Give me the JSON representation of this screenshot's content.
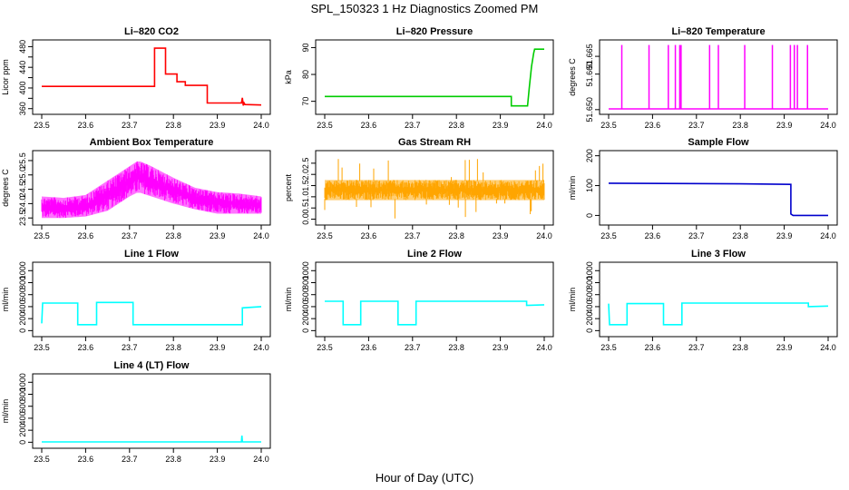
{
  "figure": {
    "title": "SPL_150323  1 Hz Diagnostics Zoomed PM",
    "xlabel": "Hour of Day (UTC)"
  },
  "chart_data": [
    {
      "type": "line",
      "title": "Li–820 CO2",
      "ylabel": "Licor ppm",
      "color": "#ff0000",
      "xlim": [
        23.5,
        24.0
      ],
      "xticks": [
        23.5,
        23.6,
        23.7,
        23.8,
        23.9,
        24.0
      ],
      "xtick_labels": [
        "23.5",
        "23.6",
        "23.7",
        "23.8",
        "23.9",
        "24.0"
      ],
      "ylim": [
        356,
        486
      ],
      "yticks": [
        360,
        380,
        400,
        420,
        440,
        460,
        480
      ],
      "ytick_labels": [
        "360",
        "",
        "400",
        "",
        "440",
        "",
        "480"
      ],
      "series": [
        {
          "x": [
            23.5,
            23.757,
            23.757,
            23.782,
            23.782,
            23.808,
            23.808,
            23.827,
            23.827,
            23.877,
            23.877,
            23.955,
            23.957,
            23.959,
            23.961,
            23.963,
            24.0
          ],
          "y": [
            403,
            403,
            477,
            477,
            427,
            427,
            412,
            412,
            405,
            405,
            371,
            371,
            381,
            366,
            371,
            368,
            367
          ]
        }
      ]
    },
    {
      "type": "line",
      "title": "Li–820 Pressure",
      "ylabel": "kPa",
      "color": "#00cc00",
      "xlim": [
        23.5,
        24.0
      ],
      "xticks": [
        23.5,
        23.6,
        23.7,
        23.8,
        23.9,
        24.0
      ],
      "xtick_labels": [
        "23.5",
        "23.6",
        "23.7",
        "23.8",
        "23.9",
        "24.0"
      ],
      "ylim": [
        66.5,
        91.5
      ],
      "yticks": [
        70,
        80,
        90
      ],
      "ytick_labels": [
        "70",
        "80",
        "90"
      ],
      "series": [
        {
          "x": [
            23.5,
            23.925,
            23.925,
            23.962,
            23.966,
            23.971,
            23.976,
            23.978,
            24.0
          ],
          "y": [
            71.8,
            71.8,
            68.3,
            68.3,
            75,
            83,
            88,
            89.4,
            89.4
          ]
        }
      ]
    },
    {
      "type": "line",
      "title": "Li–820 Temperature",
      "ylabel": "degrees C",
      "color": "#ff00ff",
      "xlim": [
        23.5,
        24.0
      ],
      "xticks": [
        23.5,
        23.6,
        23.7,
        23.8,
        23.9,
        24.0
      ],
      "xtick_labels": [
        "23.5",
        "23.6",
        "23.7",
        "23.8",
        "23.9",
        "24.0"
      ],
      "ylim": [
        51.6497,
        51.6686
      ],
      "yticks": [
        51.65,
        51.66,
        51.665
      ],
      "ytick_labels": [
        "51.650",
        "51.660",
        "51.665"
      ],
      "baseline": 51.6502,
      "spike_top": 51.6682,
      "spikes": [
        23.53,
        23.592,
        23.636,
        23.652,
        23.662,
        23.665,
        23.73,
        23.75,
        23.81,
        23.873,
        23.914,
        23.923,
        23.93,
        23.953
      ]
    },
    {
      "type": "line",
      "title": "Ambient Box Temperature",
      "ylabel": "degrees C",
      "color": "#ff00ff",
      "xlim": [
        23.5,
        24.0
      ],
      "xticks": [
        23.5,
        23.6,
        23.7,
        23.8,
        23.9,
        24.0
      ],
      "xtick_labels": [
        "23.5",
        "23.6",
        "23.7",
        "23.8",
        "23.9",
        "24.0"
      ],
      "ylim": [
        23.38,
        25.72
      ],
      "yticks": [
        23.5,
        24.0,
        24.5,
        25.0,
        25.5
      ],
      "ytick_labels": [
        "23.5",
        "24.0",
        "24.5",
        "25.0",
        "25.5"
      ],
      "band": {
        "x": [
          23.5,
          23.55,
          23.6,
          23.65,
          23.7,
          23.72,
          23.75,
          23.8,
          23.85,
          23.9,
          23.95,
          24.0
        ],
        "y_low": [
          23.5,
          23.5,
          23.55,
          23.75,
          24.25,
          24.4,
          24.25,
          24.0,
          23.8,
          23.65,
          23.65,
          23.65
        ],
        "y_high": [
          24.25,
          24.2,
          24.3,
          24.8,
          25.3,
          25.5,
          25.3,
          24.9,
          24.55,
          24.4,
          24.35,
          24.25
        ]
      }
    },
    {
      "type": "line",
      "title": "Gas Stream RH",
      "ylabel": "percent",
      "color": "#ffa500",
      "xlim": [
        23.5,
        24.0
      ],
      "xticks": [
        23.5,
        23.6,
        23.7,
        23.8,
        23.9,
        24.0
      ],
      "xtick_labels": [
        "23.5",
        "23.6",
        "23.7",
        "23.8",
        "23.9",
        "24.0"
      ],
      "ylim": [
        -0.1,
        2.9
      ],
      "yticks": [
        0.0,
        0.5,
        1.0,
        1.5,
        2.0,
        2.5
      ],
      "ytick_labels": [
        "0.0",
        "0.5",
        "1.0",
        "1.5",
        "2.0",
        "2.5"
      ],
      "band": {
        "x": [
          23.5,
          24.0
        ],
        "y_low": [
          0.85,
          0.85
        ],
        "y_high": [
          1.75,
          1.75
        ]
      }
    },
    {
      "type": "line",
      "title": "Sample Flow",
      "ylabel": "ml/min",
      "color": "#0000cc",
      "xlim": [
        23.5,
        24.0
      ],
      "xticks": [
        23.5,
        23.6,
        23.7,
        23.8,
        23.9,
        24.0
      ],
      "xtick_labels": [
        "23.5",
        "23.6",
        "23.7",
        "23.8",
        "23.9",
        "24.0"
      ],
      "ylim": [
        -20,
        205
      ],
      "yticks": [
        0,
        100,
        200
      ],
      "ytick_labels": [
        "0",
        "100",
        "200"
      ],
      "series": [
        {
          "x": [
            23.5,
            23.8,
            23.915,
            23.915,
            23.92,
            24.0
          ],
          "y": [
            108,
            106,
            104,
            5,
            0,
            0
          ]
        }
      ]
    },
    {
      "type": "line",
      "title": "Line 1 Flow",
      "ylabel": "ml/min",
      "color": "#00ffff",
      "xlim": [
        23.5,
        24.0
      ],
      "xticks": [
        23.5,
        23.6,
        23.7,
        23.8,
        23.9,
        24.0
      ],
      "xtick_labels": [
        "23.5",
        "23.6",
        "23.7",
        "23.8",
        "23.9",
        "24.0"
      ],
      "ylim": [
        -40,
        1080
      ],
      "yticks": [
        0,
        200,
        400,
        600,
        800,
        1000
      ],
      "ytick_labels": [
        "0",
        "200",
        "400",
        "600",
        "800",
        "1000"
      ],
      "series": [
        {
          "x": [
            23.5,
            23.502,
            23.582,
            23.582,
            23.625,
            23.625,
            23.708,
            23.708,
            23.957,
            23.957,
            24.0
          ],
          "y": [
            120,
            460,
            460,
            100,
            100,
            470,
            470,
            100,
            100,
            380,
            400
          ]
        }
      ]
    },
    {
      "type": "line",
      "title": "Line 2 Flow",
      "ylabel": "ml/min",
      "color": "#00ffff",
      "xlim": [
        23.5,
        24.0
      ],
      "xticks": [
        23.5,
        23.6,
        23.7,
        23.8,
        23.9,
        24.0
      ],
      "xtick_labels": [
        "23.5",
        "23.6",
        "23.7",
        "23.8",
        "23.9",
        "24.0"
      ],
      "ylim": [
        -40,
        1080
      ],
      "yticks": [
        0,
        200,
        400,
        600,
        800,
        1000
      ],
      "ytick_labels": [
        "0",
        "200",
        "400",
        "600",
        "800",
        "1000"
      ],
      "series": [
        {
          "x": [
            23.5,
            23.542,
            23.542,
            23.582,
            23.582,
            23.667,
            23.667,
            23.708,
            23.708,
            23.96,
            23.96,
            24.0
          ],
          "y": [
            490,
            490,
            100,
            100,
            490,
            490,
            100,
            100,
            490,
            490,
            420,
            430
          ]
        }
      ]
    },
    {
      "type": "line",
      "title": "Line 3 Flow",
      "ylabel": "ml/min",
      "color": "#00ffff",
      "xlim": [
        23.5,
        24.0
      ],
      "xticks": [
        23.5,
        23.6,
        23.7,
        23.8,
        23.9,
        24.0
      ],
      "xtick_labels": [
        "23.5",
        "23.6",
        "23.7",
        "23.8",
        "23.9",
        "24.0"
      ],
      "ylim": [
        -40,
        1080
      ],
      "yticks": [
        0,
        200,
        400,
        600,
        800,
        1000
      ],
      "ytick_labels": [
        "0",
        "200",
        "400",
        "600",
        "800",
        "1000"
      ],
      "series": [
        {
          "x": [
            23.5,
            23.502,
            23.542,
            23.542,
            23.625,
            23.625,
            23.667,
            23.667,
            23.955,
            23.955,
            24.0
          ],
          "y": [
            450,
            100,
            100,
            450,
            450,
            100,
            100,
            460,
            460,
            400,
            410
          ]
        }
      ]
    },
    {
      "type": "line",
      "title": "Line 4 (LT) Flow",
      "ylabel": "ml/min",
      "color": "#00ffff",
      "xlim": [
        23.5,
        24.0
      ],
      "xticks": [
        23.5,
        23.6,
        23.7,
        23.8,
        23.9,
        24.0
      ],
      "xtick_labels": [
        "23.5",
        "23.6",
        "23.7",
        "23.8",
        "23.9",
        "24.0"
      ],
      "ylim": [
        -40,
        1080
      ],
      "yticks": [
        0,
        200,
        400,
        600,
        800,
        1000
      ],
      "ytick_labels": [
        "0",
        "200",
        "400",
        "600",
        "800",
        "1000"
      ],
      "series": [
        {
          "x": [
            23.5,
            23.955,
            23.956,
            23.957,
            23.958,
            24.0
          ],
          "y": [
            5,
            5,
            110,
            10,
            5,
            5
          ]
        }
      ]
    }
  ]
}
